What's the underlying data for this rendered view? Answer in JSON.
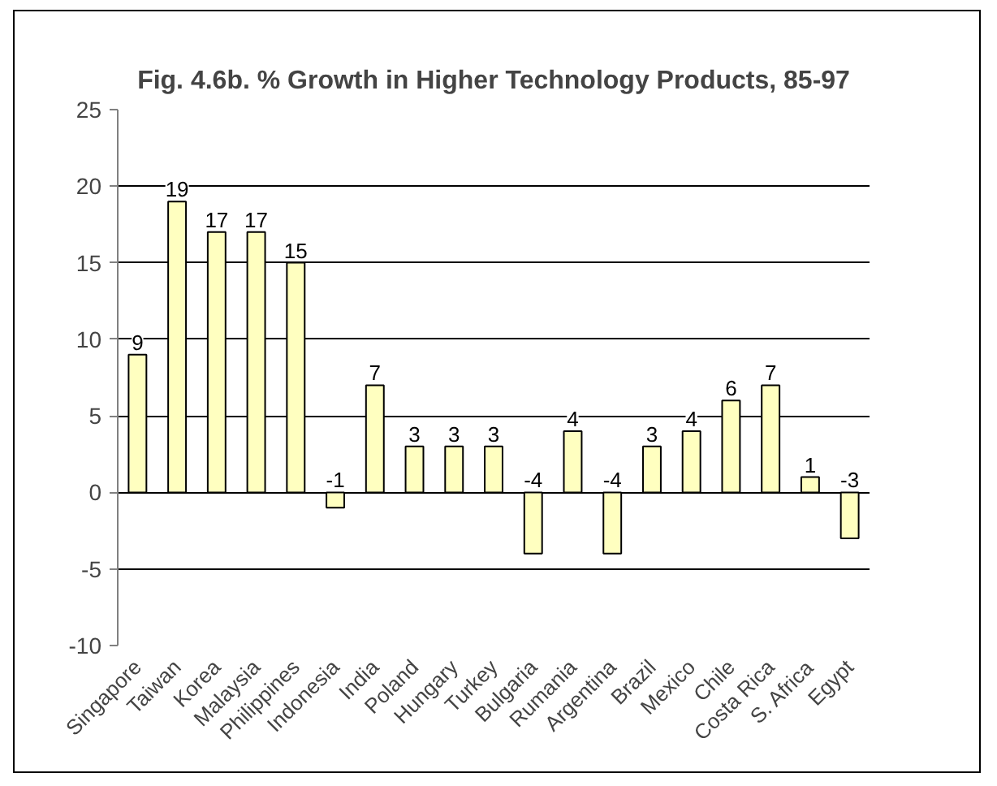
{
  "chart_data": {
    "type": "bar",
    "title": "Fig. 4.6b. % Growth in Higher Technology Products, 85-97",
    "categories": [
      "Singapore",
      "Taiwan",
      "Korea",
      "Malaysia",
      "Philippines",
      "Indonesia",
      "India",
      "Poland",
      "Hungary",
      "Turkey",
      "Bulgaria",
      "Rumania",
      "Argentina",
      "Brazil",
      "Mexico",
      "Chile",
      "Costa Rica",
      "S. Africa",
      "Egypt"
    ],
    "values": [
      9,
      19,
      17,
      17,
      15,
      -1,
      7,
      3,
      3,
      3,
      -4,
      4,
      -4,
      3,
      4,
      6,
      7,
      1,
      -3
    ],
    "color": "#ffffc0",
    "ylim": [
      -10,
      25
    ],
    "yticks": [
      -10,
      -5,
      0,
      5,
      10,
      15,
      20,
      25
    ],
    "grid": "y",
    "data_labels": true
  }
}
